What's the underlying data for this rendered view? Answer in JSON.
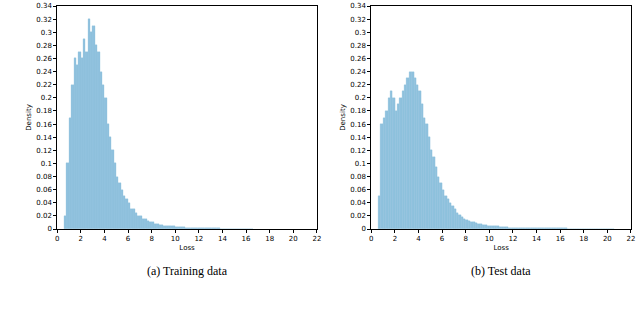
{
  "chart_data": [
    {
      "type": "histogram",
      "title": "(a) Training data",
      "xlabel": "Loss",
      "ylabel": "Density",
      "color": "#8fc1de",
      "grid": false,
      "xlim": [
        0,
        22
      ],
      "xticks": [
        0,
        2,
        4,
        6,
        8,
        10,
        12,
        14,
        16,
        18,
        20,
        22
      ],
      "ylim": [
        0,
        0.34
      ],
      "yticks": [
        0,
        0.02,
        0.04,
        0.06,
        0.08,
        0.1,
        0.12,
        0.14,
        0.16,
        0.18,
        0.2,
        0.22,
        0.24,
        0.26,
        0.28,
        0.3,
        0.32,
        0.34
      ],
      "bins": [
        0.6,
        0.8,
        1,
        1.2,
        1.4,
        1.6,
        1.8,
        2,
        2.2,
        2.4,
        2.6,
        2.8,
        3,
        3.2,
        3.4,
        3.6,
        3.8,
        4,
        4.2,
        4.4,
        4.6,
        4.8,
        5,
        5.2,
        5.4,
        5.6,
        5.8,
        6,
        6.2,
        6.4,
        6.6,
        6.8,
        7,
        7.2,
        7.4,
        7.6,
        7.8,
        8,
        8.2,
        8.4,
        8.6,
        8.8,
        9,
        9.2,
        9.4,
        9.6,
        9.8,
        10,
        10.2,
        10.4,
        10.6,
        10.8,
        11,
        11.2,
        11.4,
        11.6,
        11.8,
        12,
        12.2,
        12.4,
        12.6,
        12.8,
        13,
        13.2,
        13.4,
        13.6,
        13.8,
        14,
        14.2,
        14.4,
        14.6,
        14.8,
        15,
        15.2,
        15.4,
        15.6,
        15.8,
        16,
        16.2,
        16.4,
        16.6
      ],
      "values": [
        0.02,
        0.1,
        0.17,
        0.22,
        0.26,
        0.25,
        0.27,
        0.26,
        0.29,
        0.27,
        0.32,
        0.3,
        0.31,
        0.28,
        0.27,
        0.24,
        0.22,
        0.2,
        0.16,
        0.14,
        0.12,
        0.1,
        0.08,
        0.07,
        0.06,
        0.05,
        0.045,
        0.04,
        0.03,
        0.03,
        0.025,
        0.02,
        0.02,
        0.015,
        0.015,
        0.012,
        0.01,
        0.01,
        0.008,
        0.007,
        0.006,
        0.006,
        0.005,
        0.005,
        0.004,
        0.004,
        0.004,
        0.003,
        0.003,
        0.003,
        0.003,
        0.002,
        0.002,
        0.002,
        0.002,
        0.002,
        0.001,
        0.001,
        0.001,
        0.001,
        0.001,
        0.001,
        0.001,
        0.001,
        0.001,
        0.001,
        0.0005,
        0.0005,
        0.0005,
        0.0005,
        0.0005,
        0.0005,
        0.0005,
        0.0005,
        0.0005,
        0.0005,
        0.0005,
        0.0005,
        0.0005,
        0.0005
      ]
    },
    {
      "type": "histogram",
      "title": "(b) Test data",
      "xlabel": "Loss",
      "ylabel": "Density",
      "color": "#8fc1de",
      "grid": false,
      "xlim": [
        0,
        22
      ],
      "xticks": [
        0,
        2,
        4,
        6,
        8,
        10,
        12,
        14,
        16,
        18,
        20,
        22
      ],
      "ylim": [
        0,
        0.34
      ],
      "yticks": [
        0,
        0.02,
        0.04,
        0.06,
        0.08,
        0.1,
        0.12,
        0.14,
        0.16,
        0.18,
        0.2,
        0.22,
        0.24,
        0.26,
        0.28,
        0.3,
        0.32,
        0.34
      ],
      "bins": [
        0.6,
        0.8,
        1,
        1.2,
        1.4,
        1.6,
        1.8,
        2,
        2.2,
        2.4,
        2.6,
        2.8,
        3,
        3.2,
        3.4,
        3.6,
        3.8,
        4,
        4.2,
        4.4,
        4.6,
        4.8,
        5,
        5.2,
        5.4,
        5.6,
        5.8,
        6,
        6.2,
        6.4,
        6.6,
        6.8,
        7,
        7.2,
        7.4,
        7.6,
        7.8,
        8,
        8.2,
        8.4,
        8.6,
        8.8,
        9,
        9.2,
        9.4,
        9.6,
        9.8,
        10,
        10.2,
        10.4,
        10.6,
        10.8,
        11,
        11.2,
        11.4,
        11.6,
        11.8,
        12,
        12.2,
        12.4,
        12.6,
        12.8,
        13,
        13.2,
        13.4,
        13.6,
        13.8,
        14,
        14.2,
        14.4,
        14.6,
        14.8,
        15,
        15.2,
        15.4,
        15.6,
        15.8,
        16,
        16.2,
        16.4,
        16.6,
        16.8,
        17,
        17.2,
        17.4,
        17.6,
        17.8,
        18,
        18.2,
        18.4,
        18.6,
        18.8,
        19,
        19.2,
        19.4,
        19.6,
        19.8,
        20,
        20.2,
        20.4,
        20.6
      ],
      "values": [
        0.05,
        0.16,
        0.17,
        0.18,
        0.2,
        0.21,
        0.2,
        0.18,
        0.19,
        0.2,
        0.21,
        0.22,
        0.23,
        0.24,
        0.24,
        0.23,
        0.22,
        0.21,
        0.19,
        0.17,
        0.16,
        0.14,
        0.12,
        0.11,
        0.095,
        0.08,
        0.07,
        0.06,
        0.05,
        0.045,
        0.04,
        0.035,
        0.03,
        0.025,
        0.022,
        0.019,
        0.016,
        0.014,
        0.012,
        0.011,
        0.01,
        0.009,
        0.008,
        0.007,
        0.006,
        0.006,
        0.005,
        0.005,
        0.004,
        0.004,
        0.004,
        0.003,
        0.003,
        0.003,
        0.003,
        0.002,
        0.002,
        0.002,
        0.002,
        0.002,
        0.002,
        0.002,
        0.001,
        0.001,
        0.001,
        0.001,
        0.001,
        0.001,
        0.001,
        0.001,
        0.001,
        0.001,
        0.001,
        0.001,
        0.001,
        0.001,
        0.001,
        0.001,
        0.001,
        0.001,
        0.0005,
        0.0005,
        0.0005,
        0.0005,
        0.0005,
        0.0005,
        0.0005,
        0.0005,
        0.0005,
        0.0005,
        0.0005,
        0.0005,
        0.0005,
        0.0005,
        0.0005,
        0.0005,
        0.0005,
        0.0005,
        0.0005,
        0.0005
      ]
    }
  ]
}
